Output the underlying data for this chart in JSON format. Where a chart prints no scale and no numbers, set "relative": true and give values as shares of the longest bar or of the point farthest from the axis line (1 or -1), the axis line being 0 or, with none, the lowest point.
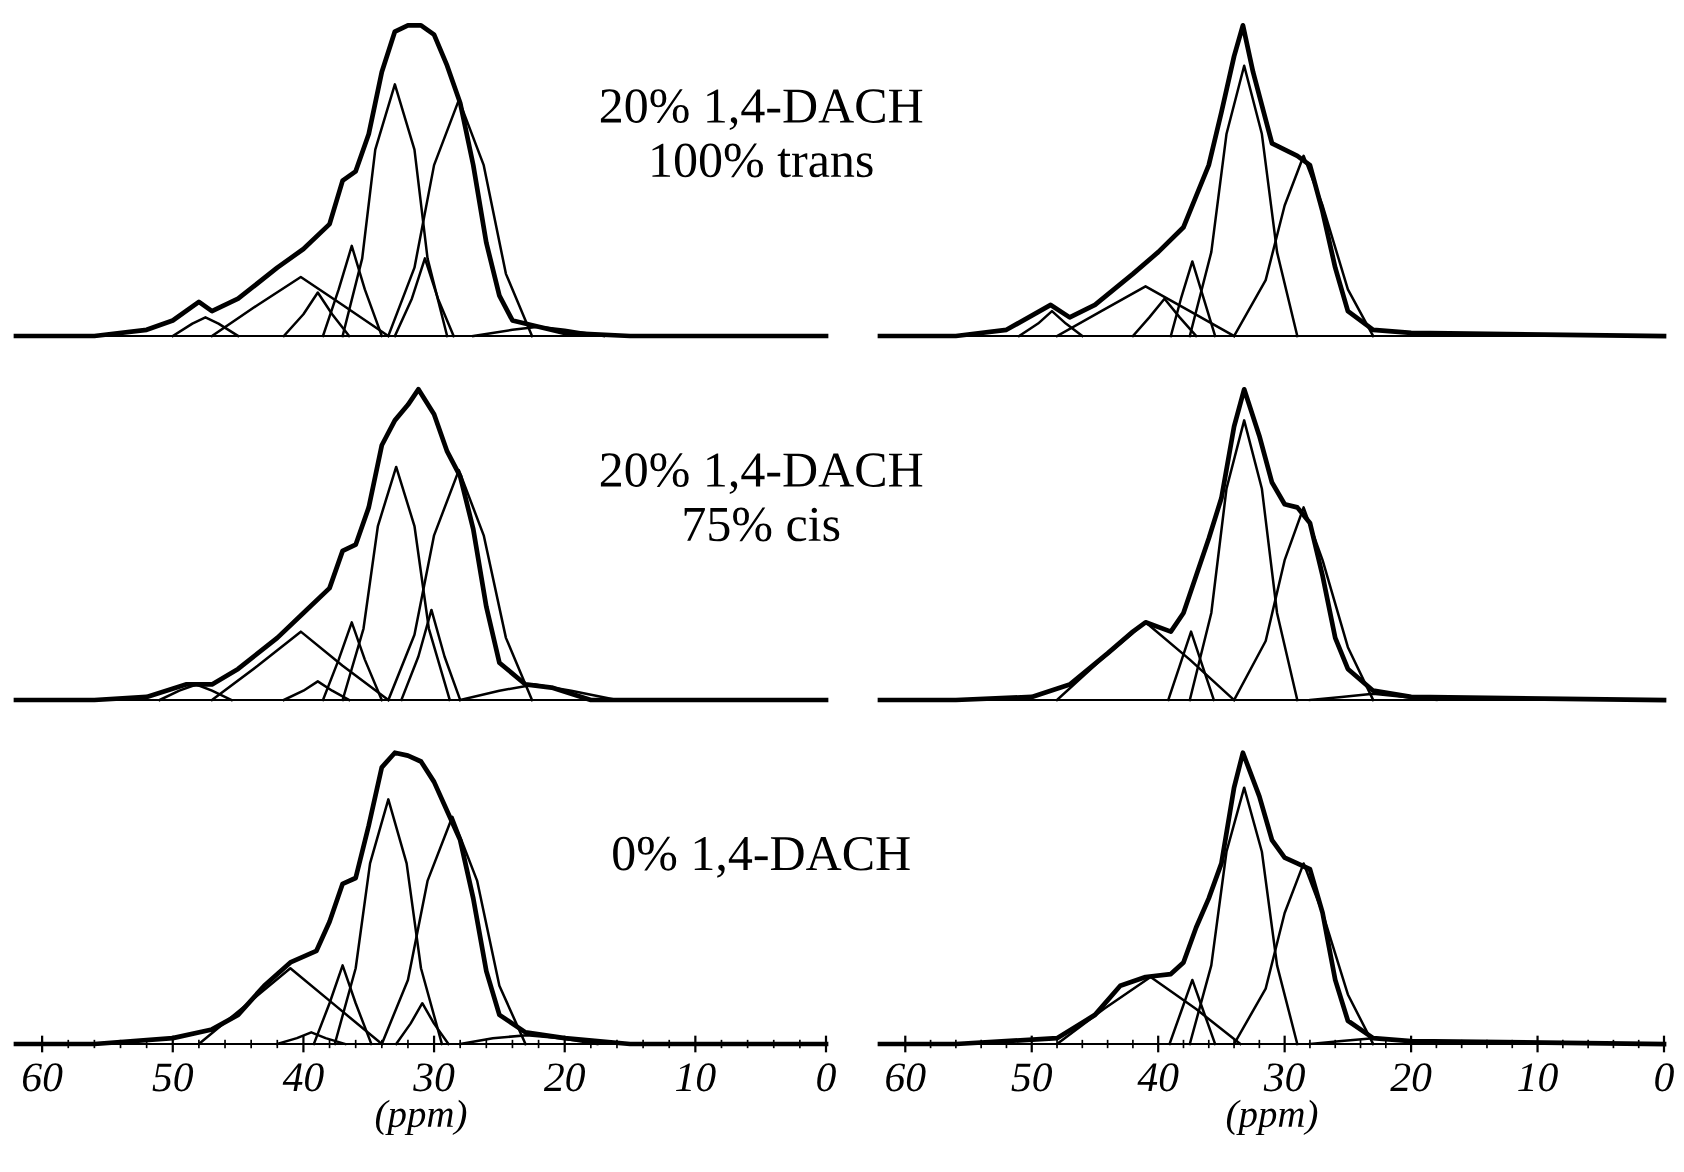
{
  "chart_data": [
    {
      "type": "line",
      "relative": true,
      "xlim": [
        62,
        0
      ],
      "tick_labels": false,
      "annotations": [
        "20% 1,4-DACH",
        "100% trans"
      ],
      "series": [
        {
          "color": "#000000",
          "x": [
            62,
            56,
            52,
            50,
            48,
            47,
            45,
            42,
            40,
            38,
            37,
            36,
            35,
            34,
            33,
            32,
            31,
            30,
            29,
            28,
            27,
            26,
            25,
            24,
            22,
            20,
            15,
            0
          ],
          "values": [
            0,
            0,
            0.02,
            0.05,
            0.11,
            0.08,
            0.12,
            0.22,
            0.28,
            0.36,
            0.5,
            0.53,
            0.65,
            0.85,
            0.98,
            1,
            1,
            0.97,
            0.87,
            0.75,
            0.55,
            0.3,
            0.13,
            0.05,
            0.03,
            0.01,
            0,
            0
          ]
        },
        {
          "color": "#000000",
          "x": [
            37,
            35.5,
            34.5,
            33,
            31.5,
            30.5,
            29
          ],
          "values": [
            0,
            0.25,
            0.6,
            0.81,
            0.6,
            0.25,
            0
          ]
        },
        {
          "color": "#000000",
          "x": [
            33.5,
            31.5,
            30,
            28.1,
            26.2,
            24.5,
            22.5
          ],
          "values": [
            0,
            0.22,
            0.55,
            0.76,
            0.55,
            0.2,
            0
          ]
        },
        {
          "color": "#000000",
          "x": [
            38.5,
            37.3,
            36.3,
            35.3,
            34
          ],
          "values": [
            0,
            0.15,
            0.29,
            0.15,
            0
          ]
        },
        {
          "color": "#000000",
          "x": [
            47,
            43.5,
            40.2,
            37,
            33.5
          ],
          "values": [
            0,
            0.1,
            0.19,
            0.1,
            0
          ]
        },
        {
          "color": "#000000",
          "x": [
            41.5,
            40,
            38.9,
            37.8,
            36.5
          ],
          "values": [
            0,
            0.07,
            0.14,
            0.07,
            0
          ]
        },
        {
          "color": "#000000",
          "x": [
            33,
            31.7,
            30.7,
            29.7,
            28.5
          ],
          "values": [
            0,
            0.12,
            0.25,
            0.12,
            0
          ]
        },
        {
          "color": "#000000",
          "x": [
            50,
            48.5,
            47.5,
            46.5,
            45
          ],
          "values": [
            0,
            0.04,
            0.06,
            0.04,
            0
          ]
        },
        {
          "color": "#000000",
          "x": [
            27,
            24,
            22,
            20,
            17
          ],
          "values": [
            0,
            0.02,
            0.03,
            0.02,
            0
          ]
        }
      ]
    },
    {
      "type": "line",
      "relative": true,
      "xlim": [
        62,
        0
      ],
      "tick_labels": false,
      "series": [
        {
          "color": "#000000",
          "x": [
            62,
            56,
            52,
            48.5,
            47,
            45,
            42,
            40,
            38,
            37,
            36,
            35,
            34,
            33.3,
            32.5,
            31,
            30,
            29,
            28,
            27,
            26,
            25,
            23,
            20,
            0
          ],
          "values": [
            0,
            0,
            0.02,
            0.1,
            0.06,
            0.1,
            0.2,
            0.27,
            0.35,
            0.45,
            0.55,
            0.72,
            0.9,
            1,
            0.85,
            0.62,
            0.6,
            0.58,
            0.55,
            0.4,
            0.22,
            0.08,
            0.02,
            0.01,
            0
          ]
        },
        {
          "color": "#000000",
          "x": [
            37.5,
            35.8,
            34.6,
            33.2,
            31.8,
            30.6,
            29
          ],
          "values": [
            0,
            0.27,
            0.65,
            0.87,
            0.65,
            0.27,
            0
          ]
        },
        {
          "color": "#000000",
          "x": [
            34,
            31.5,
            30,
            28.5,
            27,
            25,
            23
          ],
          "values": [
            0,
            0.18,
            0.42,
            0.58,
            0.42,
            0.15,
            0
          ]
        },
        {
          "color": "#000000",
          "x": [
            39,
            38.2,
            37.3,
            36.4,
            35.5
          ],
          "values": [
            0,
            0.12,
            0.24,
            0.12,
            0
          ]
        },
        {
          "color": "#000000",
          "x": [
            48,
            44.5,
            41,
            37.5,
            34
          ],
          "values": [
            0,
            0.08,
            0.16,
            0.08,
            0
          ]
        },
        {
          "color": "#000000",
          "x": [
            42,
            40.7,
            39.5,
            38.3,
            37
          ],
          "values": [
            0,
            0.06,
            0.12,
            0.06,
            0
          ]
        },
        {
          "color": "#000000",
          "x": [
            51,
            49.5,
            48.4,
            47.3,
            46
          ],
          "values": [
            0,
            0.04,
            0.08,
            0.04,
            0
          ]
        }
      ]
    },
    {
      "type": "line",
      "relative": true,
      "xlim": [
        62,
        0
      ],
      "tick_labels": false,
      "annotations": [
        "20% 1,4-DACH",
        "75% cis"
      ],
      "series": [
        {
          "color": "#000000",
          "x": [
            62,
            56,
            52,
            49,
            47,
            45,
            42,
            40,
            38,
            37,
            36,
            35,
            34,
            33,
            32,
            31.2,
            30,
            29,
            28,
            27,
            26,
            25,
            23,
            21,
            18,
            0
          ],
          "values": [
            0,
            0,
            0.01,
            0.05,
            0.05,
            0.1,
            0.2,
            0.28,
            0.36,
            0.48,
            0.5,
            0.62,
            0.82,
            0.9,
            0.95,
            1,
            0.92,
            0.8,
            0.72,
            0.55,
            0.3,
            0.12,
            0.05,
            0.04,
            0,
            0
          ]
        },
        {
          "color": "#000000",
          "x": [
            37,
            35.4,
            34.3,
            32.9,
            31.5,
            30.4,
            28.8
          ],
          "values": [
            0,
            0.23,
            0.56,
            0.75,
            0.56,
            0.23,
            0
          ]
        },
        {
          "color": "#000000",
          "x": [
            33.5,
            31.5,
            30,
            28.1,
            26.2,
            24.5,
            22.5
          ],
          "values": [
            0,
            0.21,
            0.53,
            0.74,
            0.53,
            0.2,
            0
          ]
        },
        {
          "color": "#000000",
          "x": [
            38.5,
            37.3,
            36.3,
            35.3,
            34
          ],
          "values": [
            0,
            0.13,
            0.25,
            0.13,
            0
          ]
        },
        {
          "color": "#000000",
          "x": [
            47,
            43.5,
            40.2,
            37,
            33.5
          ],
          "values": [
            0,
            0.11,
            0.22,
            0.11,
            0
          ]
        },
        {
          "color": "#000000",
          "x": [
            41.5,
            40,
            38.9,
            37.8,
            36.5
          ],
          "values": [
            0,
            0.03,
            0.06,
            0.03,
            0
          ]
        },
        {
          "color": "#000000",
          "x": [
            32.5,
            31.2,
            30.2,
            29.2,
            28
          ],
          "values": [
            0,
            0.14,
            0.29,
            0.14,
            0
          ]
        },
        {
          "color": "#000000",
          "x": [
            51,
            49.5,
            48.2,
            47,
            45.5
          ],
          "values": [
            0,
            0.03,
            0.05,
            0.03,
            0
          ]
        },
        {
          "color": "#000000",
          "x": [
            28,
            25,
            22.3,
            19.5,
            16
          ],
          "values": [
            0,
            0.03,
            0.05,
            0.03,
            0
          ]
        }
      ]
    },
    {
      "type": "line",
      "relative": true,
      "xlim": [
        62,
        0
      ],
      "tick_labels": false,
      "series": [
        {
          "color": "#000000",
          "x": [
            62,
            56,
            50,
            47,
            44,
            42,
            41,
            39,
            38,
            37,
            36,
            35,
            34,
            33.2,
            32,
            31,
            30,
            29,
            28,
            27,
            26,
            25,
            23,
            20,
            0
          ],
          "values": [
            0,
            0,
            0.01,
            0.05,
            0.15,
            0.22,
            0.25,
            0.22,
            0.28,
            0.4,
            0.52,
            0.65,
            0.88,
            1,
            0.85,
            0.7,
            0.63,
            0.62,
            0.57,
            0.4,
            0.2,
            0.1,
            0.03,
            0.01,
            0
          ]
        },
        {
          "color": "#000000",
          "x": [
            37.5,
            35.8,
            34.6,
            33.2,
            31.8,
            30.6,
            29
          ],
          "values": [
            0,
            0.28,
            0.68,
            0.9,
            0.68,
            0.28,
            0
          ]
        },
        {
          "color": "#000000",
          "x": [
            34,
            31.5,
            30,
            28.5,
            27,
            25,
            23
          ],
          "values": [
            0,
            0.19,
            0.45,
            0.62,
            0.45,
            0.17,
            0
          ]
        },
        {
          "color": "#000000",
          "x": [
            39.2,
            38.3,
            37.4,
            36.5,
            35.6
          ],
          "values": [
            0,
            0.11,
            0.22,
            0.11,
            0
          ]
        },
        {
          "color": "#000000",
          "x": [
            48,
            44.5,
            41,
            37.5,
            34
          ],
          "values": [
            0,
            0.13,
            0.25,
            0.13,
            0
          ]
        },
        {
          "color": "#000000",
          "x": [
            28,
            25.5,
            23,
            20.5,
            18
          ],
          "values": [
            0,
            0.01,
            0.02,
            0.01,
            0
          ]
        }
      ]
    },
    {
      "type": "line",
      "relative": true,
      "xlim": [
        62,
        0
      ],
      "xticks": [
        60,
        {
          "value": 58,
          "label": null
        },
        {
          "value": 56,
          "label": null
        },
        {
          "value": 54,
          "label": null
        },
        {
          "value": 52,
          "label": null
        },
        50,
        {
          "value": 48,
          "label": null
        },
        {
          "value": 46,
          "label": null
        },
        {
          "value": 44,
          "label": null
        },
        {
          "value": 42,
          "label": null
        },
        40,
        {
          "value": 38,
          "label": null
        },
        {
          "value": 36,
          "label": null
        },
        {
          "value": 34,
          "label": null
        },
        {
          "value": 32,
          "label": null
        },
        30,
        {
          "value": 28,
          "label": null
        },
        {
          "value": 26,
          "label": null
        },
        {
          "value": 24,
          "label": null
        },
        {
          "value": 22,
          "label": null
        },
        20,
        {
          "value": 18,
          "label": null
        },
        {
          "value": 16,
          "label": null
        },
        {
          "value": 14,
          "label": null
        },
        {
          "value": 12,
          "label": null
        },
        10,
        {
          "value": 8,
          "label": null
        },
        {
          "value": 6,
          "label": null
        },
        {
          "value": 4,
          "label": null
        },
        {
          "value": 2,
          "label": null
        },
        0
      ],
      "tick_labels": "x",
      "xlabel": "(ppm)",
      "annotations": [
        "0% 1,4-DACH"
      ],
      "series": [
        {
          "color": "#000000",
          "x": [
            62,
            56,
            50,
            47,
            45,
            43,
            41,
            39,
            38,
            37,
            36,
            35,
            34,
            33,
            32,
            31,
            30,
            29,
            28,
            27,
            26,
            25,
            23,
            20,
            15,
            0
          ],
          "values": [
            0,
            0,
            0.02,
            0.05,
            0.1,
            0.2,
            0.28,
            0.32,
            0.42,
            0.55,
            0.57,
            0.75,
            0.95,
            1,
            0.99,
            0.97,
            0.9,
            0.8,
            0.7,
            0.5,
            0.25,
            0.1,
            0.04,
            0.02,
            0,
            0
          ]
        },
        {
          "color": "#000000",
          "x": [
            37.6,
            36,
            34.9,
            33.5,
            32.1,
            31,
            29.4
          ],
          "values": [
            0,
            0.26,
            0.62,
            0.84,
            0.62,
            0.26,
            0
          ]
        },
        {
          "color": "#000000",
          "x": [
            34,
            32,
            30.5,
            28.6,
            26.7,
            25,
            23
          ],
          "values": [
            0,
            0.22,
            0.56,
            0.78,
            0.56,
            0.2,
            0
          ]
        },
        {
          "color": "#000000",
          "x": [
            39.2,
            38,
            37,
            36,
            34.8
          ],
          "values": [
            0,
            0.14,
            0.27,
            0.14,
            0
          ]
        },
        {
          "color": "#000000",
          "x": [
            48,
            44.5,
            41,
            37.5,
            34
          ],
          "values": [
            0,
            0.13,
            0.26,
            0.13,
            0
          ]
        },
        {
          "color": "#000000",
          "x": [
            32.9,
            31.8,
            30.9,
            30,
            28.9
          ],
          "values": [
            0,
            0.07,
            0.14,
            0.07,
            0
          ]
        },
        {
          "color": "#000000",
          "x": [
            42,
            40.5,
            39.4,
            38.3,
            36.8
          ],
          "values": [
            0,
            0.02,
            0.04,
            0.02,
            0
          ]
        },
        {
          "color": "#000000",
          "x": [
            28,
            25.5,
            22.9,
            20.3,
            17.5
          ],
          "values": [
            0,
            0.02,
            0.03,
            0.02,
            0
          ]
        }
      ]
    },
    {
      "type": "line",
      "relative": true,
      "xlim": [
        62,
        0
      ],
      "xticks": [
        60,
        {
          "value": 58,
          "label": null
        },
        {
          "value": 56,
          "label": null
        },
        {
          "value": 54,
          "label": null
        },
        {
          "value": 52,
          "label": null
        },
        50,
        {
          "value": 48,
          "label": null
        },
        {
          "value": 46,
          "label": null
        },
        {
          "value": 44,
          "label": null
        },
        {
          "value": 42,
          "label": null
        },
        40,
        {
          "value": 38,
          "label": null
        },
        {
          "value": 36,
          "label": null
        },
        {
          "value": 34,
          "label": null
        },
        {
          "value": 32,
          "label": null
        },
        30,
        {
          "value": 28,
          "label": null
        },
        {
          "value": 26,
          "label": null
        },
        {
          "value": 24,
          "label": null
        },
        {
          "value": 22,
          "label": null
        },
        20,
        {
          "value": 18,
          "label": null
        },
        {
          "value": 16,
          "label": null
        },
        {
          "value": 14,
          "label": null
        },
        {
          "value": 12,
          "label": null
        },
        10,
        {
          "value": 8,
          "label": null
        },
        {
          "value": 6,
          "label": null
        },
        {
          "value": 4,
          "label": null
        },
        {
          "value": 2,
          "label": null
        },
        0
      ],
      "tick_labels": "x",
      "xlabel": "(ppm)",
      "series": [
        {
          "color": "#000000",
          "x": [
            62,
            56,
            48,
            45,
            43,
            41,
            39,
            38,
            37,
            36,
            35,
            34,
            33.3,
            32,
            31,
            30,
            29,
            28,
            27,
            26,
            25,
            23,
            20,
            0
          ],
          "values": [
            0,
            0,
            0.02,
            0.1,
            0.2,
            0.23,
            0.24,
            0.28,
            0.4,
            0.5,
            0.62,
            0.88,
            1,
            0.85,
            0.7,
            0.64,
            0.62,
            0.6,
            0.45,
            0.22,
            0.08,
            0.02,
            0.01,
            0
          ]
        },
        {
          "color": "#000000",
          "x": [
            37.5,
            35.8,
            34.6,
            33.2,
            31.8,
            30.6,
            29
          ],
          "values": [
            0,
            0.27,
            0.66,
            0.88,
            0.66,
            0.27,
            0
          ]
        },
        {
          "color": "#000000",
          "x": [
            34,
            31.5,
            30,
            28.5,
            27,
            25,
            23
          ],
          "values": [
            0,
            0.19,
            0.45,
            0.62,
            0.45,
            0.17,
            0
          ]
        },
        {
          "color": "#000000",
          "x": [
            39.1,
            38.2,
            37.3,
            36.4,
            35.5
          ],
          "values": [
            0,
            0.11,
            0.22,
            0.11,
            0
          ]
        },
        {
          "color": "#000000",
          "x": [
            48,
            44.3,
            40.6,
            37,
            33.5
          ],
          "values": [
            0,
            0.12,
            0.23,
            0.12,
            0
          ]
        },
        {
          "color": "#000000",
          "x": [
            28,
            25.5,
            23,
            20.5,
            18
          ],
          "values": [
            0,
            0.01,
            0.02,
            0.01,
            0
          ]
        }
      ]
    }
  ]
}
